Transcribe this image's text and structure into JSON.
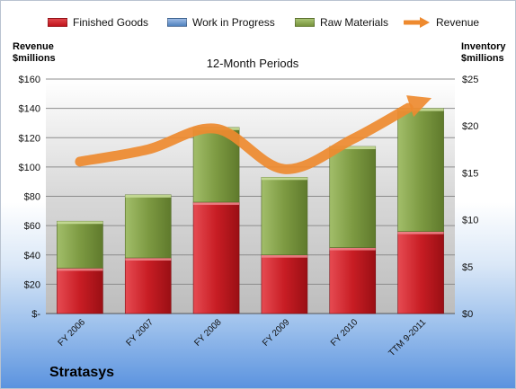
{
  "chart_data": {
    "type": "bar",
    "subtitle": "12-Month Periods",
    "categories": [
      "FY 2006",
      "FY 2007",
      "FY 2008",
      "FY 2009",
      "FY 2010",
      "TTM 9-2011"
    ],
    "stacked_series": [
      {
        "name": "Finished Goods",
        "color": "#c0141c",
        "values": [
          31,
          38,
          76,
          40,
          45,
          56
        ]
      },
      {
        "name": "Work in Progress",
        "color": "#4f81bd",
        "values": [
          0,
          0,
          0,
          0,
          0,
          0
        ]
      },
      {
        "name": "Raw Materials",
        "color": "#77933c",
        "values": [
          32,
          43,
          51,
          53,
          69,
          84
        ]
      }
    ],
    "line_series": {
      "name": "Revenue",
      "color": "#ee8a2f",
      "values": [
        16.2,
        17.5,
        19.7,
        15.4,
        18.6,
        22.4
      ]
    },
    "left_axis": {
      "label_line1": "Revenue",
      "label_line2": "$millions",
      "min": 0,
      "max": 160,
      "step": 20,
      "ticks": [
        "$-",
        "$20",
        "$40",
        "$60",
        "$80",
        "$100",
        "$120",
        "$140",
        "$160"
      ]
    },
    "right_axis": {
      "label_line1": "Inventory",
      "label_line2": "$millions",
      "min": 0,
      "max": 25,
      "step": 5,
      "ticks": [
        "$0",
        "$5",
        "$10",
        "$15",
        "$20",
        "$25"
      ]
    },
    "grid": true,
    "legend_position": "top"
  },
  "company": "Stratasys"
}
